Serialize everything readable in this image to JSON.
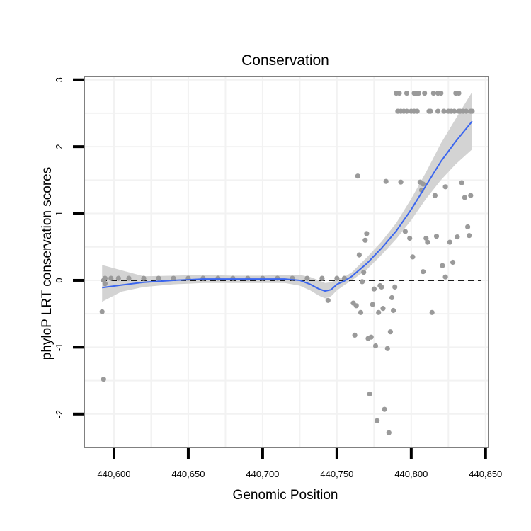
{
  "chart_data": {
    "type": "scatter",
    "title": "Conservation",
    "xlabel": "Genomic Position",
    "ylabel": "phyloP LRT conservation scores",
    "xlim": [
      440580,
      440852
    ],
    "ylim": [
      -2.5,
      3.05
    ],
    "x_ticks": [
      440600,
      440650,
      440700,
      440750,
      440800,
      440850
    ],
    "x_tick_labels": [
      "440,600",
      "440,650",
      "440,700",
      "440,750",
      "440,800",
      "440,850"
    ],
    "y_ticks": [
      -2,
      -1,
      0,
      1,
      2,
      3
    ],
    "y_tick_labels": [
      "-2",
      "-1",
      "0",
      "1",
      "2",
      "3"
    ],
    "reference_line": {
      "y": 0,
      "style": "dashed",
      "color": "#000000"
    },
    "colors": {
      "points": "#9a9a9a",
      "smooth": "#3b66ee",
      "band": "#d3d3d3",
      "grid": "#f2f2f2",
      "frame": "#808080"
    },
    "points": [
      [
        440592,
        -0.47
      ],
      [
        440593,
        -1.48
      ],
      [
        440593,
        0.0
      ],
      [
        440594,
        -0.05
      ],
      [
        440594,
        0.03
      ],
      [
        440598,
        0.03
      ],
      [
        440603,
        0.03
      ],
      [
        440610,
        0.03
      ],
      [
        440620,
        0.03
      ],
      [
        440630,
        0.03
      ],
      [
        440640,
        0.03
      ],
      [
        440650,
        0.03
      ],
      [
        440660,
        0.03
      ],
      [
        440670,
        0.03
      ],
      [
        440680,
        0.03
      ],
      [
        440690,
        0.03
      ],
      [
        440700,
        0.03
      ],
      [
        440710,
        0.03
      ],
      [
        440720,
        0.03
      ],
      [
        440730,
        0.03
      ],
      [
        440740,
        0.03
      ],
      [
        440750,
        0.03
      ],
      [
        440755,
        0.03
      ],
      [
        440744,
        -0.3
      ],
      [
        440761,
        -0.34
      ],
      [
        440762,
        -0.82
      ],
      [
        440763,
        -0.38
      ],
      [
        440764,
        1.56
      ],
      [
        440765,
        0.38
      ],
      [
        440766,
        -0.48
      ],
      [
        440767,
        -0.02
      ],
      [
        440768,
        0.12
      ],
      [
        440769,
        0.6
      ],
      [
        440770,
        0.7
      ],
      [
        440771,
        -0.87
      ],
      [
        440772,
        -1.7
      ],
      [
        440773,
        -0.85
      ],
      [
        440774,
        -0.36
      ],
      [
        440775,
        -0.13
      ],
      [
        440776,
        -0.98
      ],
      [
        440777,
        -2.1
      ],
      [
        440778,
        -0.48
      ],
      [
        440779,
        -0.08
      ],
      [
        440780,
        -0.1
      ],
      [
        440781,
        -0.42
      ],
      [
        440782,
        -1.93
      ],
      [
        440783,
        1.48
      ],
      [
        440784,
        -1.02
      ],
      [
        440785,
        -2.28
      ],
      [
        440786,
        -0.77
      ],
      [
        440787,
        -0.26
      ],
      [
        440788,
        -0.45
      ],
      [
        440789,
        -0.1
      ],
      [
        440790,
        2.8
      ],
      [
        440791,
        2.53
      ],
      [
        440792,
        2.8
      ],
      [
        440793,
        1.47
      ],
      [
        440793,
        2.53
      ],
      [
        440795,
        2.53
      ],
      [
        440796,
        0.73
      ],
      [
        440797,
        2.53
      ],
      [
        440797,
        2.8
      ],
      [
        440799,
        0.63
      ],
      [
        440800,
        2.53
      ],
      [
        440801,
        0.35
      ],
      [
        440802,
        2.8
      ],
      [
        440803,
        2.8
      ],
      [
        440804,
        2.53
      ],
      [
        440805,
        2.8
      ],
      [
        440806,
        1.47
      ],
      [
        440807,
        1.35
      ],
      [
        440808,
        0.13
      ],
      [
        440808,
        1.44
      ],
      [
        440809,
        2.8
      ],
      [
        440810,
        0.63
      ],
      [
        440811,
        0.57
      ],
      [
        440812,
        2.53
      ],
      [
        440813,
        2.53
      ],
      [
        440814,
        -0.48
      ],
      [
        440815,
        2.8
      ],
      [
        440816,
        1.27
      ],
      [
        440817,
        0.66
      ],
      [
        440818,
        2.53
      ],
      [
        440820,
        2.8
      ],
      [
        440821,
        0.22
      ],
      [
        440822,
        2.53
      ],
      [
        440823,
        1.4
      ],
      [
        440823,
        0.05
      ],
      [
        440825,
        2.53
      ],
      [
        440826,
        0.57
      ],
      [
        440827,
        2.53
      ],
      [
        440828,
        0.27
      ],
      [
        440829,
        2.53
      ],
      [
        440830,
        2.8
      ],
      [
        440831,
        0.65
      ],
      [
        440832,
        2.8
      ],
      [
        440833,
        2.53
      ],
      [
        440834,
        1.46
      ],
      [
        440835,
        2.53
      ],
      [
        440836,
        1.24
      ],
      [
        440837,
        2.53
      ],
      [
        440838,
        0.8
      ],
      [
        440839,
        0.67
      ],
      [
        440840,
        1.27
      ],
      [
        440840,
        2.53
      ],
      [
        440841,
        2.53
      ],
      [
        440802,
        2.53
      ],
      [
        440804,
        2.8
      ],
      [
        440818,
        2.8
      ],
      [
        440832,
        2.53
      ]
    ],
    "smooth": {
      "x": [
        440592,
        440605,
        440620,
        440640,
        440660,
        440680,
        440700,
        440715,
        440725,
        440732,
        440738,
        440742,
        440746,
        440750,
        440755,
        440760,
        440770,
        440780,
        440790,
        440800,
        440810,
        440820,
        440830,
        440841
      ],
      "y": [
        -0.11,
        -0.07,
        -0.03,
        0.0,
        0.02,
        0.02,
        0.02,
        0.02,
        0.0,
        -0.06,
        -0.13,
        -0.16,
        -0.14,
        -0.06,
        -0.01,
        0.06,
        0.25,
        0.48,
        0.74,
        1.06,
        1.42,
        1.78,
        2.08,
        2.38
      ],
      "lower": [
        -0.32,
        -0.17,
        -0.1,
        -0.06,
        -0.04,
        -0.04,
        -0.04,
        -0.04,
        -0.08,
        -0.15,
        -0.23,
        -0.27,
        -0.24,
        -0.15,
        -0.07,
        0.0,
        0.16,
        0.38,
        0.62,
        0.9,
        1.22,
        1.5,
        1.74,
        1.96
      ],
      "upper": [
        0.23,
        0.15,
        0.06,
        0.07,
        0.08,
        0.07,
        0.07,
        0.08,
        0.08,
        0.05,
        0.0,
        -0.04,
        -0.03,
        0.02,
        0.05,
        0.12,
        0.34,
        0.58,
        0.86,
        1.22,
        1.62,
        2.05,
        2.42,
        2.82
      ]
    }
  }
}
